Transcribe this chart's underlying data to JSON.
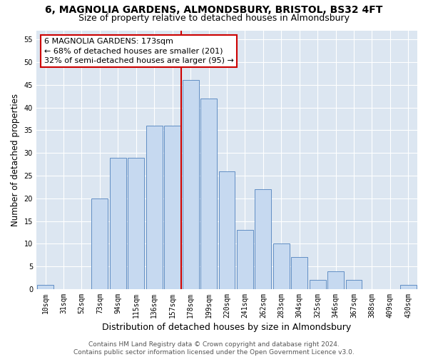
{
  "title": "6, MAGNOLIA GARDENS, ALMONDSBURY, BRISTOL, BS32 4FT",
  "subtitle": "Size of property relative to detached houses in Almondsbury",
  "xlabel": "Distribution of detached houses by size in Almondsbury",
  "ylabel": "Number of detached properties",
  "bar_labels": [
    "10sqm",
    "31sqm",
    "52sqm",
    "73sqm",
    "94sqm",
    "115sqm",
    "136sqm",
    "157sqm",
    "178sqm",
    "199sqm",
    "220sqm",
    "241sqm",
    "262sqm",
    "283sqm",
    "304sqm",
    "325sqm",
    "346sqm",
    "367sqm",
    "388sqm",
    "409sqm",
    "430sqm"
  ],
  "bar_values": [
    1,
    0,
    0,
    20,
    29,
    29,
    36,
    36,
    46,
    42,
    26,
    13,
    22,
    10,
    7,
    2,
    4,
    2,
    0,
    0,
    1
  ],
  "bar_color": "#c6d9f0",
  "bar_edge_color": "#4f81bd",
  "reference_line_color": "#cc0000",
  "annotation_text": "6 MAGNOLIA GARDENS: 173sqm\n← 68% of detached houses are smaller (201)\n32% of semi-detached houses are larger (95) →",
  "annotation_box_facecolor": "#ffffff",
  "annotation_box_edgecolor": "#cc0000",
  "ylim": [
    0,
    57
  ],
  "yticks": [
    0,
    5,
    10,
    15,
    20,
    25,
    30,
    35,
    40,
    45,
    50,
    55
  ],
  "fig_facecolor": "#ffffff",
  "ax_facecolor": "#dce6f1",
  "grid_color": "#ffffff",
  "title_fontsize": 10,
  "subtitle_fontsize": 9,
  "xlabel_fontsize": 9,
  "ylabel_fontsize": 8.5,
  "tick_fontsize": 7,
  "annotation_fontsize": 8,
  "footer_fontsize": 6.5,
  "footer_text": "Contains HM Land Registry data © Crown copyright and database right 2024.\nContains public sector information licensed under the Open Government Licence v3.0.",
  "ref_bar_index": 8
}
